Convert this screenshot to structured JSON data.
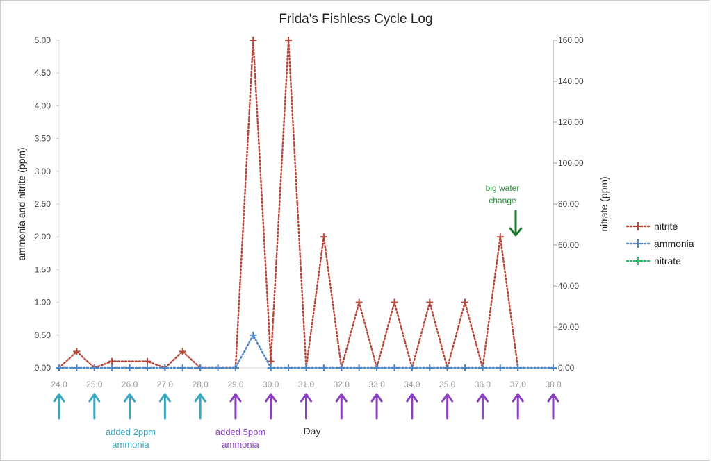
{
  "chart_data": {
    "type": "line",
    "title": "Frida's Fishless Cycle Log",
    "xlabel": "Day",
    "ylabel_left": "ammonia and nitrite (ppm)",
    "ylabel_right": "nitrate (ppm)",
    "xlim": [
      24.0,
      38.0
    ],
    "ylim_left": [
      0,
      5
    ],
    "ylim_right": [
      0,
      160
    ],
    "x_ticks": [
      "24.0",
      "25.0",
      "26.0",
      "27.0",
      "28.0",
      "29.0",
      "30.0",
      "31.0",
      "32.0",
      "33.0",
      "34.0",
      "35.0",
      "36.0",
      "37.0",
      "38.0"
    ],
    "y_ticks_left": [
      "0.00",
      "0.50",
      "1.00",
      "1.50",
      "2.00",
      "2.50",
      "3.00",
      "3.50",
      "4.00",
      "4.50",
      "5.00"
    ],
    "y_ticks_right": [
      "0.00",
      "20.00",
      "40.00",
      "60.00",
      "80.00",
      "100.00",
      "120.00",
      "140.00",
      "160.00"
    ],
    "legend_position": "right",
    "series": [
      {
        "name": "nitrite",
        "axis": "left",
        "color": "#b5473a",
        "x": [
          24.0,
          24.5,
          25.0,
          25.5,
          26.5,
          27.0,
          27.5,
          28.0,
          29.0,
          29.5,
          30.0,
          30.5,
          31.0,
          31.5,
          32.0,
          32.5,
          33.0,
          33.5,
          34.0,
          34.5,
          35.0,
          35.5,
          36.0,
          36.5,
          37.0
        ],
        "values": [
          0,
          0.25,
          0,
          0.1,
          0.1,
          0,
          0.25,
          0,
          0,
          5,
          0.1,
          5,
          0,
          2,
          0,
          1,
          0,
          1,
          0,
          1,
          0,
          1,
          0,
          2,
          0
        ]
      },
      {
        "name": "ammonia",
        "axis": "left",
        "color": "#4f86c6",
        "x": [
          24.0,
          24.5,
          25.0,
          25.5,
          26.0,
          26.5,
          27.0,
          27.5,
          28.0,
          28.5,
          29.0,
          29.5,
          30.0,
          30.5,
          31.0,
          31.5,
          32.0,
          32.5,
          33.0,
          33.5,
          34.0,
          34.5,
          35.0,
          35.5,
          36.0,
          36.5,
          37.0,
          38.0
        ],
        "values": [
          0,
          0,
          0,
          0,
          0,
          0,
          0,
          0,
          0,
          0,
          0,
          0.5,
          0,
          0,
          0,
          0,
          0,
          0,
          0,
          0,
          0,
          0,
          0,
          0,
          0,
          0,
          0,
          0
        ]
      },
      {
        "name": "nitrate",
        "axis": "right",
        "color": "#2fb36b",
        "x": [],
        "values": []
      }
    ],
    "annotations": [
      {
        "id": "ammonia-2ppm",
        "lines": [
          "added 2ppm",
          "ammonia"
        ],
        "color": "#3aa6c0"
      },
      {
        "id": "ammonia-5ppm",
        "lines": [
          "added 5ppm",
          "ammonia"
        ],
        "color": "#8a3fbf"
      },
      {
        "id": "water-change",
        "lines": [
          "big water",
          "change"
        ],
        "color": "#2a8a3a",
        "arrow_color": "#1e7a2e",
        "x": 37.0
      }
    ],
    "dose_arrows": [
      {
        "x": 24.0,
        "dose": "2ppm",
        "color": "#3aa6c0"
      },
      {
        "x": 25.0,
        "dose": "2ppm",
        "color": "#3aa6c0"
      },
      {
        "x": 26.0,
        "dose": "2ppm",
        "color": "#3aa6c0"
      },
      {
        "x": 27.0,
        "dose": "2ppm",
        "color": "#3aa6c0"
      },
      {
        "x": 28.0,
        "dose": "2ppm",
        "color": "#3aa6c0"
      },
      {
        "x": 29.0,
        "dose": "5ppm",
        "color": "#8a3fbf"
      },
      {
        "x": 30.0,
        "dose": "5ppm",
        "color": "#8a3fbf"
      },
      {
        "x": 31.0,
        "dose": "5ppm",
        "color": "#8a3fbf"
      },
      {
        "x": 32.0,
        "dose": "5ppm",
        "color": "#8a3fbf"
      },
      {
        "x": 33.0,
        "dose": "5ppm",
        "color": "#8a3fbf"
      },
      {
        "x": 34.0,
        "dose": "5ppm",
        "color": "#8a3fbf"
      },
      {
        "x": 35.0,
        "dose": "5ppm",
        "color": "#8a3fbf"
      },
      {
        "x": 36.0,
        "dose": "5ppm",
        "color": "#8a3fbf"
      },
      {
        "x": 37.0,
        "dose": "5ppm",
        "color": "#8a3fbf"
      },
      {
        "x": 38.0,
        "dose": "5ppm",
        "color": "#8a3fbf"
      }
    ]
  }
}
